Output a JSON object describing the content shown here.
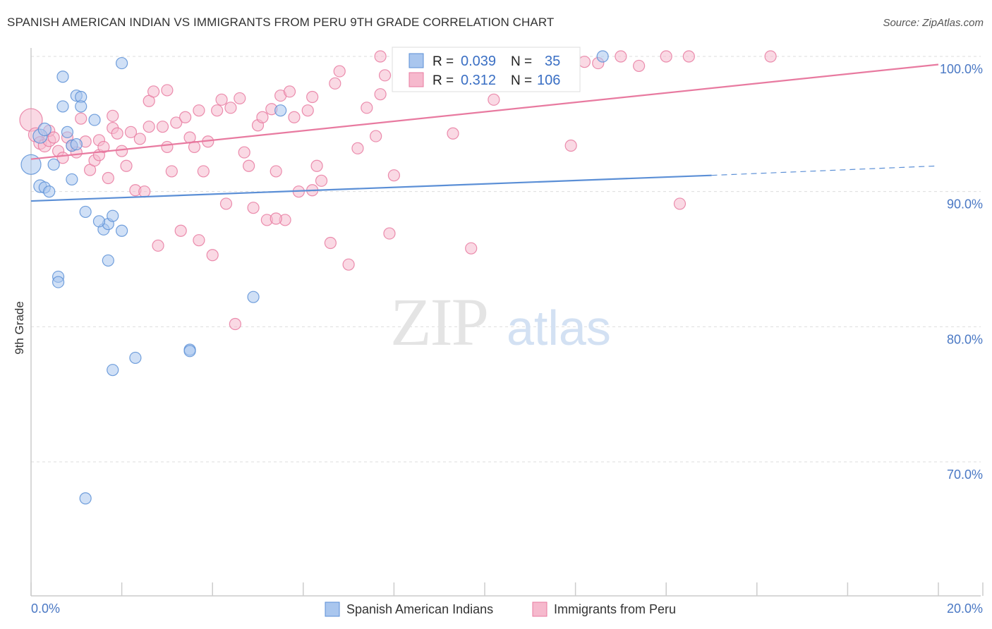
{
  "header": {
    "title": "SPANISH AMERICAN INDIAN VS IMMIGRANTS FROM PERU 9TH GRADE CORRELATION CHART",
    "source": "Source: ZipAtlas.com"
  },
  "colors": {
    "blue": "#5b8fd6",
    "blue_fill": "#a9c6ee",
    "pink": "#e87aa0",
    "pink_fill": "#f6b9cd",
    "grid": "#dddddd",
    "tick_text": "#4a78c4"
  },
  "chart_data": {
    "type": "scatter",
    "title": "SPANISH AMERICAN INDIAN VS IMMIGRANTS FROM PERU 9TH GRADE CORRELATION CHART",
    "xlabel": "",
    "ylabel": "9th Grade",
    "xlim": [
      0,
      20
    ],
    "ylim": [
      60,
      100
    ],
    "x_tick_labels": [
      "0.0%",
      "20.0%"
    ],
    "y_ticks": [
      70,
      80,
      90,
      100
    ],
    "y_tick_labels": [
      "70.0%",
      "80.0%",
      "90.0%",
      "100.0%"
    ],
    "grid": true,
    "legend_placement": "bottom",
    "watermark": "ZIPatlas",
    "stats": [
      {
        "r_label": "R =",
        "r_value": "0.039",
        "n_label": "N =",
        "n_value": "35"
      },
      {
        "r_label": "R =",
        "r_value": "0.312",
        "n_label": "N =",
        "n_value": "106"
      }
    ],
    "series": [
      {
        "name": "Spanish American Indians",
        "color": "#5b8fd6",
        "trend": {
          "x0": 0,
          "y0": 89.3,
          "x1": 15,
          "y1": 91.2,
          "dash_to_x": 20,
          "dash_to_y": 91.9
        },
        "points": [
          [
            0.0,
            92.0,
            14
          ],
          [
            0.2,
            94.1,
            10
          ],
          [
            0.3,
            94.6,
            9
          ],
          [
            0.2,
            90.4,
            9
          ],
          [
            0.3,
            90.3,
            8
          ],
          [
            0.4,
            90.0,
            8
          ],
          [
            0.5,
            92.0,
            8
          ],
          [
            0.7,
            98.5,
            8
          ],
          [
            0.7,
            96.3,
            8
          ],
          [
            0.8,
            94.4,
            8
          ],
          [
            0.9,
            90.9,
            8
          ],
          [
            0.9,
            93.4,
            8
          ],
          [
            1.0,
            93.5,
            8
          ],
          [
            1.0,
            97.1,
            8
          ],
          [
            1.1,
            97.0,
            8
          ],
          [
            1.1,
            96.3,
            8
          ],
          [
            1.4,
            95.3,
            8
          ],
          [
            1.6,
            87.2,
            8
          ],
          [
            1.7,
            87.6,
            8
          ],
          [
            1.8,
            88.2,
            8
          ],
          [
            1.5,
            87.8,
            8
          ],
          [
            1.2,
            88.5,
            8
          ],
          [
            2.0,
            87.1,
            8
          ],
          [
            1.7,
            84.9,
            8
          ],
          [
            0.6,
            83.7,
            8
          ],
          [
            0.6,
            83.3,
            8
          ],
          [
            2.0,
            99.5,
            8
          ],
          [
            1.8,
            76.8,
            8
          ],
          [
            2.3,
            77.7,
            8
          ],
          [
            3.5,
            78.3,
            8
          ],
          [
            3.5,
            78.2,
            8
          ],
          [
            4.9,
            82.2,
            8
          ],
          [
            5.5,
            96.0,
            8
          ],
          [
            12.6,
            100.0,
            8
          ],
          [
            1.2,
            67.3,
            8
          ]
        ]
      },
      {
        "name": "Immigrants from Peru",
        "color": "#e87aa0",
        "trend": {
          "x0": 0,
          "y0": 92.4,
          "x1": 20,
          "y1": 99.4
        },
        "points": [
          [
            0.0,
            95.3,
            16
          ],
          [
            0.1,
            94.2,
            10
          ],
          [
            0.2,
            93.6,
            9
          ],
          [
            0.3,
            93.4,
            9
          ],
          [
            0.4,
            93.8,
            9
          ],
          [
            0.4,
            94.5,
            8
          ],
          [
            0.5,
            94.0,
            8
          ],
          [
            0.6,
            93.0,
            8
          ],
          [
            0.7,
            92.5,
            8
          ],
          [
            0.8,
            94.0,
            8
          ],
          [
            0.9,
            93.4,
            8
          ],
          [
            1.0,
            92.9,
            8
          ],
          [
            1.1,
            95.4,
            8
          ],
          [
            1.2,
            93.7,
            8
          ],
          [
            1.3,
            91.6,
            8
          ],
          [
            1.4,
            92.3,
            8
          ],
          [
            1.5,
            92.7,
            8
          ],
          [
            1.5,
            93.8,
            8
          ],
          [
            1.6,
            93.3,
            8
          ],
          [
            1.7,
            91.0,
            8
          ],
          [
            1.8,
            94.7,
            8
          ],
          [
            1.8,
            95.6,
            8
          ],
          [
            1.9,
            94.3,
            8
          ],
          [
            2.0,
            93.0,
            8
          ],
          [
            2.1,
            91.9,
            8
          ],
          [
            2.2,
            94.4,
            8
          ],
          [
            2.3,
            90.1,
            8
          ],
          [
            2.4,
            93.9,
            8
          ],
          [
            2.5,
            90.0,
            8
          ],
          [
            2.6,
            94.8,
            8
          ],
          [
            2.6,
            96.7,
            8
          ],
          [
            2.7,
            97.4,
            8
          ],
          [
            2.8,
            86.0,
            8
          ],
          [
            2.9,
            94.8,
            8
          ],
          [
            3.0,
            93.3,
            8
          ],
          [
            3.1,
            91.5,
            8
          ],
          [
            3.2,
            95.1,
            8
          ],
          [
            3.3,
            87.1,
            8
          ],
          [
            3.4,
            95.5,
            8
          ],
          [
            3.5,
            94.0,
            8
          ],
          [
            3.6,
            93.3,
            8
          ],
          [
            3.7,
            96.0,
            8
          ],
          [
            3.7,
            86.4,
            8
          ],
          [
            3.8,
            91.5,
            8
          ],
          [
            3.9,
            93.7,
            8
          ],
          [
            4.0,
            85.3,
            8
          ],
          [
            4.1,
            96.0,
            8
          ],
          [
            4.2,
            96.8,
            8
          ],
          [
            4.3,
            89.1,
            8
          ],
          [
            4.4,
            96.2,
            8
          ],
          [
            4.5,
            80.2,
            8
          ],
          [
            4.6,
            96.9,
            8
          ],
          [
            4.7,
            92.9,
            8
          ],
          [
            4.8,
            91.9,
            8
          ],
          [
            4.9,
            88.8,
            8
          ],
          [
            5.0,
            94.9,
            8
          ],
          [
            5.1,
            95.5,
            8
          ],
          [
            5.2,
            87.9,
            8
          ],
          [
            5.3,
            96.1,
            8
          ],
          [
            5.4,
            91.5,
            8
          ],
          [
            5.5,
            97.1,
            8
          ],
          [
            5.6,
            87.9,
            8
          ],
          [
            5.7,
            97.4,
            8
          ],
          [
            5.8,
            95.5,
            8
          ],
          [
            5.9,
            90.0,
            8
          ],
          [
            6.1,
            96.0,
            8
          ],
          [
            6.2,
            97.0,
            8
          ],
          [
            6.3,
            91.9,
            8
          ],
          [
            6.4,
            90.8,
            8
          ],
          [
            6.6,
            86.2,
            8
          ],
          [
            6.7,
            98.0,
            8
          ],
          [
            6.8,
            98.9,
            8
          ],
          [
            7.0,
            84.6,
            8
          ],
          [
            7.2,
            93.2,
            8
          ],
          [
            7.4,
            96.2,
            8
          ],
          [
            7.6,
            94.1,
            8
          ],
          [
            7.7,
            97.2,
            8
          ],
          [
            7.8,
            98.6,
            8
          ],
          [
            7.9,
            86.9,
            8
          ],
          [
            8.0,
            91.2,
            8
          ],
          [
            7.7,
            100.0,
            8
          ],
          [
            8.5,
            99.8,
            8
          ],
          [
            8.7,
            98.8,
            8
          ],
          [
            9.0,
            100.0,
            8
          ],
          [
            9.3,
            94.3,
            8
          ],
          [
            9.5,
            99.2,
            8
          ],
          [
            9.7,
            85.8,
            8
          ],
          [
            10.0,
            99.5,
            8
          ],
          [
            10.2,
            96.8,
            8
          ],
          [
            10.5,
            98.2,
            8
          ],
          [
            10.7,
            99.9,
            8
          ],
          [
            11.0,
            99.3,
            8
          ],
          [
            11.2,
            98.8,
            8
          ],
          [
            11.5,
            100.0,
            8
          ],
          [
            11.9,
            93.4,
            8
          ],
          [
            12.2,
            99.6,
            8
          ],
          [
            12.5,
            99.5,
            8
          ],
          [
            13.0,
            100.0,
            8
          ],
          [
            13.4,
            99.3,
            8
          ],
          [
            14.0,
            100.0,
            8
          ],
          [
            14.3,
            89.1,
            8
          ],
          [
            14.5,
            100.0,
            8
          ],
          [
            16.3,
            100.0,
            8
          ],
          [
            3.0,
            97.5,
            8
          ],
          [
            6.2,
            90.1,
            8
          ],
          [
            5.4,
            88.0,
            8
          ]
        ]
      }
    ]
  }
}
